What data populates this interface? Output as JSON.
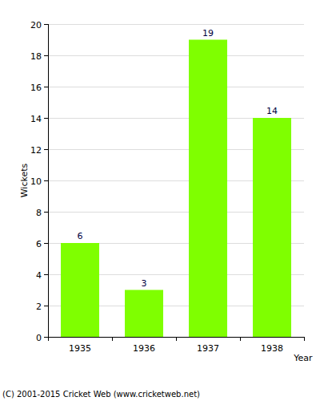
{
  "chart_data": {
    "type": "bar",
    "x_label": "Year",
    "y_label": "Wickets",
    "categories": [
      "1935",
      "1936",
      "1937",
      "1938"
    ],
    "values": [
      6,
      3,
      19,
      14
    ],
    "color": "#7fff00",
    "ylim": [
      0,
      20
    ],
    "yticks": [
      0,
      2,
      4,
      6,
      8,
      10,
      12,
      14,
      16,
      18,
      20
    ],
    "grid": true,
    "data_labels": true,
    "annotations": [
      "(C) 2001-2015 Cricket Web (www.cricketweb.net)"
    ]
  }
}
